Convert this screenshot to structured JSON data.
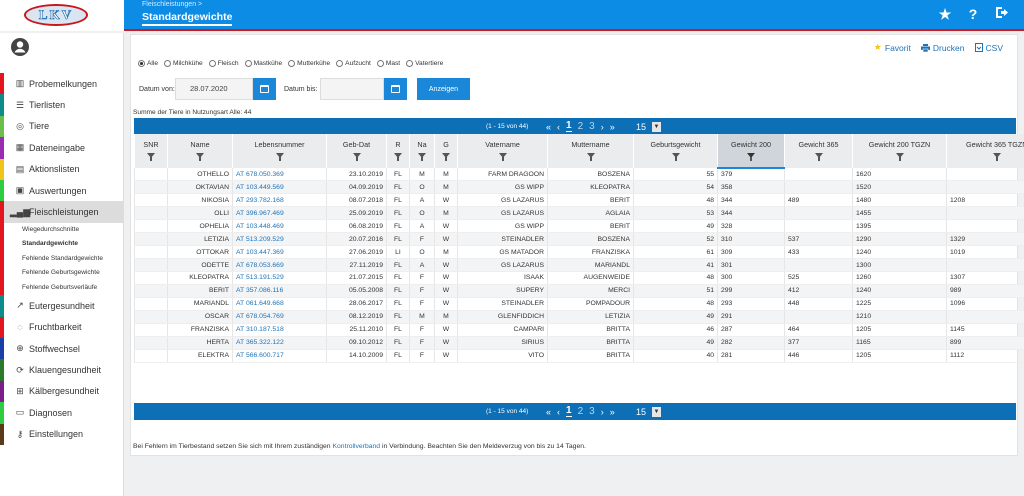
{
  "header": {
    "logo_text": "LKV",
    "breadcrumb": "Fleischleistungen >",
    "title": "Standardgewichte"
  },
  "sidebar": {
    "items": [
      {
        "label": "Probemelkungen",
        "icon": "bar-chart-icon",
        "color": "#e3161d"
      },
      {
        "label": "Tierlisten",
        "icon": "list-icon",
        "color": "#0e8c8c"
      },
      {
        "label": "Tiere",
        "icon": "target-icon",
        "color": "#6abf4b"
      },
      {
        "label": "Dateneingabe",
        "icon": "grid-icon",
        "color": "#9b2bb0"
      },
      {
        "label": "Aktionslisten",
        "icon": "calendar-icon",
        "color": "#f0c419"
      },
      {
        "label": "Auswertungen",
        "icon": "report-icon",
        "color": "#2ecc40"
      },
      {
        "label": "Fleischleistungen",
        "icon": "signal-bars-icon",
        "color": "#e3161d"
      }
    ],
    "sub_items": [
      {
        "label": "Wiegedurchschnitte"
      },
      {
        "label": "Standardgewichte"
      },
      {
        "label": "Fehlende Standardgewichte"
      },
      {
        "label": "Fehlende Geburtsgewichte"
      },
      {
        "label": "Fehlende Geburtsverläufe"
      }
    ],
    "items_after": [
      {
        "label": "Eutergesundheit",
        "icon": "trend-icon",
        "color": "#0e8c8c"
      },
      {
        "label": "Fruchtbarkeit",
        "icon": "dotted-circle-icon",
        "color": "#e3161d"
      },
      {
        "label": "Stoffwechsel",
        "icon": "crosshair-icon",
        "color": "#1a3fa8"
      },
      {
        "label": "Klauengesundheit",
        "icon": "refresh-icon",
        "color": "#2a7a2a"
      },
      {
        "label": "Kälbergesundheit",
        "icon": "plus-square-icon",
        "color": "#7a1e8c"
      },
      {
        "label": "Diagnosen",
        "icon": "folder-icon",
        "color": "#2ecc40"
      },
      {
        "label": "Einstellungen",
        "icon": "key-icon",
        "color": "#5a3a1a"
      }
    ]
  },
  "actions": {
    "favorit": "Favorit",
    "drucken": "Drucken",
    "csv": "CSV"
  },
  "filters": {
    "radios": [
      {
        "label": "Alle",
        "checked": true
      },
      {
        "label": "Milchkühe",
        "checked": false
      },
      {
        "label": "Fleisch",
        "checked": false
      },
      {
        "label": "Mastkühe",
        "checked": false
      },
      {
        "label": "Mutterkühe",
        "checked": false
      },
      {
        "label": "Aufzucht",
        "checked": false
      },
      {
        "label": "Mast",
        "checked": false
      },
      {
        "label": "Vatertiere",
        "checked": false
      }
    ],
    "date_from_label": "Datum von:",
    "date_from_value": "28.07.2020",
    "date_to_label": "Datum bis:",
    "date_to_value": "",
    "show_button": "Anzeigen"
  },
  "summary": "Summe der Tiere in Nutzungsart Alle: 44",
  "pager": {
    "info": "(1 - 15 von 44)",
    "first": "«",
    "prev": "‹",
    "pages": [
      "1",
      "2",
      "3"
    ],
    "next": "›",
    "last": "»",
    "page_size": "15"
  },
  "table": {
    "columns": [
      "SNR",
      "Name",
      "Lebensnummer",
      "Geb-Dat",
      "R",
      "Na",
      "G",
      "Vatername",
      "Muttername",
      "Geburtsgewicht",
      "Gewicht 200",
      "Gewicht 365",
      "Gewicht 200 TGZN",
      "Gewicht 365 TGZN"
    ],
    "rows": [
      [
        "",
        "OTHELLO",
        "AT 678.050.369",
        "23.10.2019",
        "FL",
        "M",
        "M",
        "FARM DRAGOON",
        "BOSZENA",
        "55",
        "379",
        "",
        "1620",
        ""
      ],
      [
        "",
        "OKTAVIAN",
        "AT 103.449.569",
        "04.09.2019",
        "FL",
        "O",
        "M",
        "GS WIPP",
        "KLEOPATRA",
        "54",
        "358",
        "",
        "1520",
        ""
      ],
      [
        "",
        "NIKOSIA",
        "AT 293.782.168",
        "08.07.2018",
        "FL",
        "A",
        "W",
        "GS LAZARUS",
        "BERIT",
        "48",
        "344",
        "489",
        "1480",
        "1208"
      ],
      [
        "",
        "OLLI",
        "AT 396.967.469",
        "25.09.2019",
        "FL",
        "O",
        "M",
        "GS LAZARUS",
        "AGLAIA",
        "53",
        "344",
        "",
        "1455",
        ""
      ],
      [
        "",
        "OPHELIA",
        "AT 103.448.469",
        "06.08.2019",
        "FL",
        "A",
        "W",
        "GS WIPP",
        "BERIT",
        "49",
        "328",
        "",
        "1395",
        ""
      ],
      [
        "",
        "LETIZIA",
        "AT 513.209.529",
        "20.07.2016",
        "FL",
        "F",
        "W",
        "STEINADLER",
        "BOSZENA",
        "52",
        "310",
        "537",
        "1290",
        "1329"
      ],
      [
        "",
        "OTTOKAR",
        "AT 103.447.369",
        "27.06.2019",
        "LI",
        "O",
        "M",
        "GS MATADOR",
        "FRANZISKA",
        "61",
        "309",
        "433",
        "1240",
        "1019"
      ],
      [
        "",
        "ODETTE",
        "AT 678.053.669",
        "27.11.2019",
        "FL",
        "A",
        "W",
        "GS LAZARUS",
        "MARIANDL",
        "41",
        "301",
        "",
        "1300",
        ""
      ],
      [
        "",
        "KLEOPATRA",
        "AT 513.191.529",
        "21.07.2015",
        "FL",
        "F",
        "W",
        "ISAAK",
        "AUGENWEIDE",
        "48",
        "300",
        "525",
        "1260",
        "1307"
      ],
      [
        "",
        "BERIT",
        "AT 357.086.116",
        "05.05.2008",
        "FL",
        "F",
        "W",
        "SUPERY",
        "MERCI",
        "51",
        "299",
        "412",
        "1240",
        "989"
      ],
      [
        "",
        "MARIANDL",
        "AT 061.649.668",
        "28.06.2017",
        "FL",
        "F",
        "W",
        "STEINADLER",
        "POMPADOUR",
        "48",
        "293",
        "448",
        "1225",
        "1096"
      ],
      [
        "",
        "OSCAR",
        "AT 678.054.769",
        "08.12.2019",
        "FL",
        "M",
        "M",
        "GLENFIDDICH",
        "LETIZIA",
        "49",
        "291",
        "",
        "1210",
        ""
      ],
      [
        "",
        "FRANZISKA",
        "AT 310.187.518",
        "25.11.2010",
        "FL",
        "F",
        "W",
        "CAMPARI",
        "BRITTA",
        "46",
        "287",
        "464",
        "1205",
        "1145"
      ],
      [
        "",
        "HERTA",
        "AT 365.322.122",
        "09.10.2012",
        "FL",
        "F",
        "W",
        "SIRIUS",
        "BRITTA",
        "49",
        "282",
        "377",
        "1165",
        "899"
      ],
      [
        "",
        "ELEKTRA",
        "AT 566.600.717",
        "14.10.2009",
        "FL",
        "F",
        "W",
        "VITO",
        "BRITTA",
        "40",
        "281",
        "446",
        "1205",
        "1112"
      ]
    ]
  },
  "footnote": {
    "before": "Bei Fehlern im Tierbestand setzen Sie sich mit Ihrem zuständigen ",
    "link": "Kontrollverband",
    "after": " in Verbindung. Beachten Sie den Meldeverzug von bis zu 14 Tagen."
  },
  "colors": {
    "primary": "#0d8ce6",
    "pager": "#0d6fb5",
    "accent_red": "#d9161c",
    "link": "#1f73b7"
  }
}
